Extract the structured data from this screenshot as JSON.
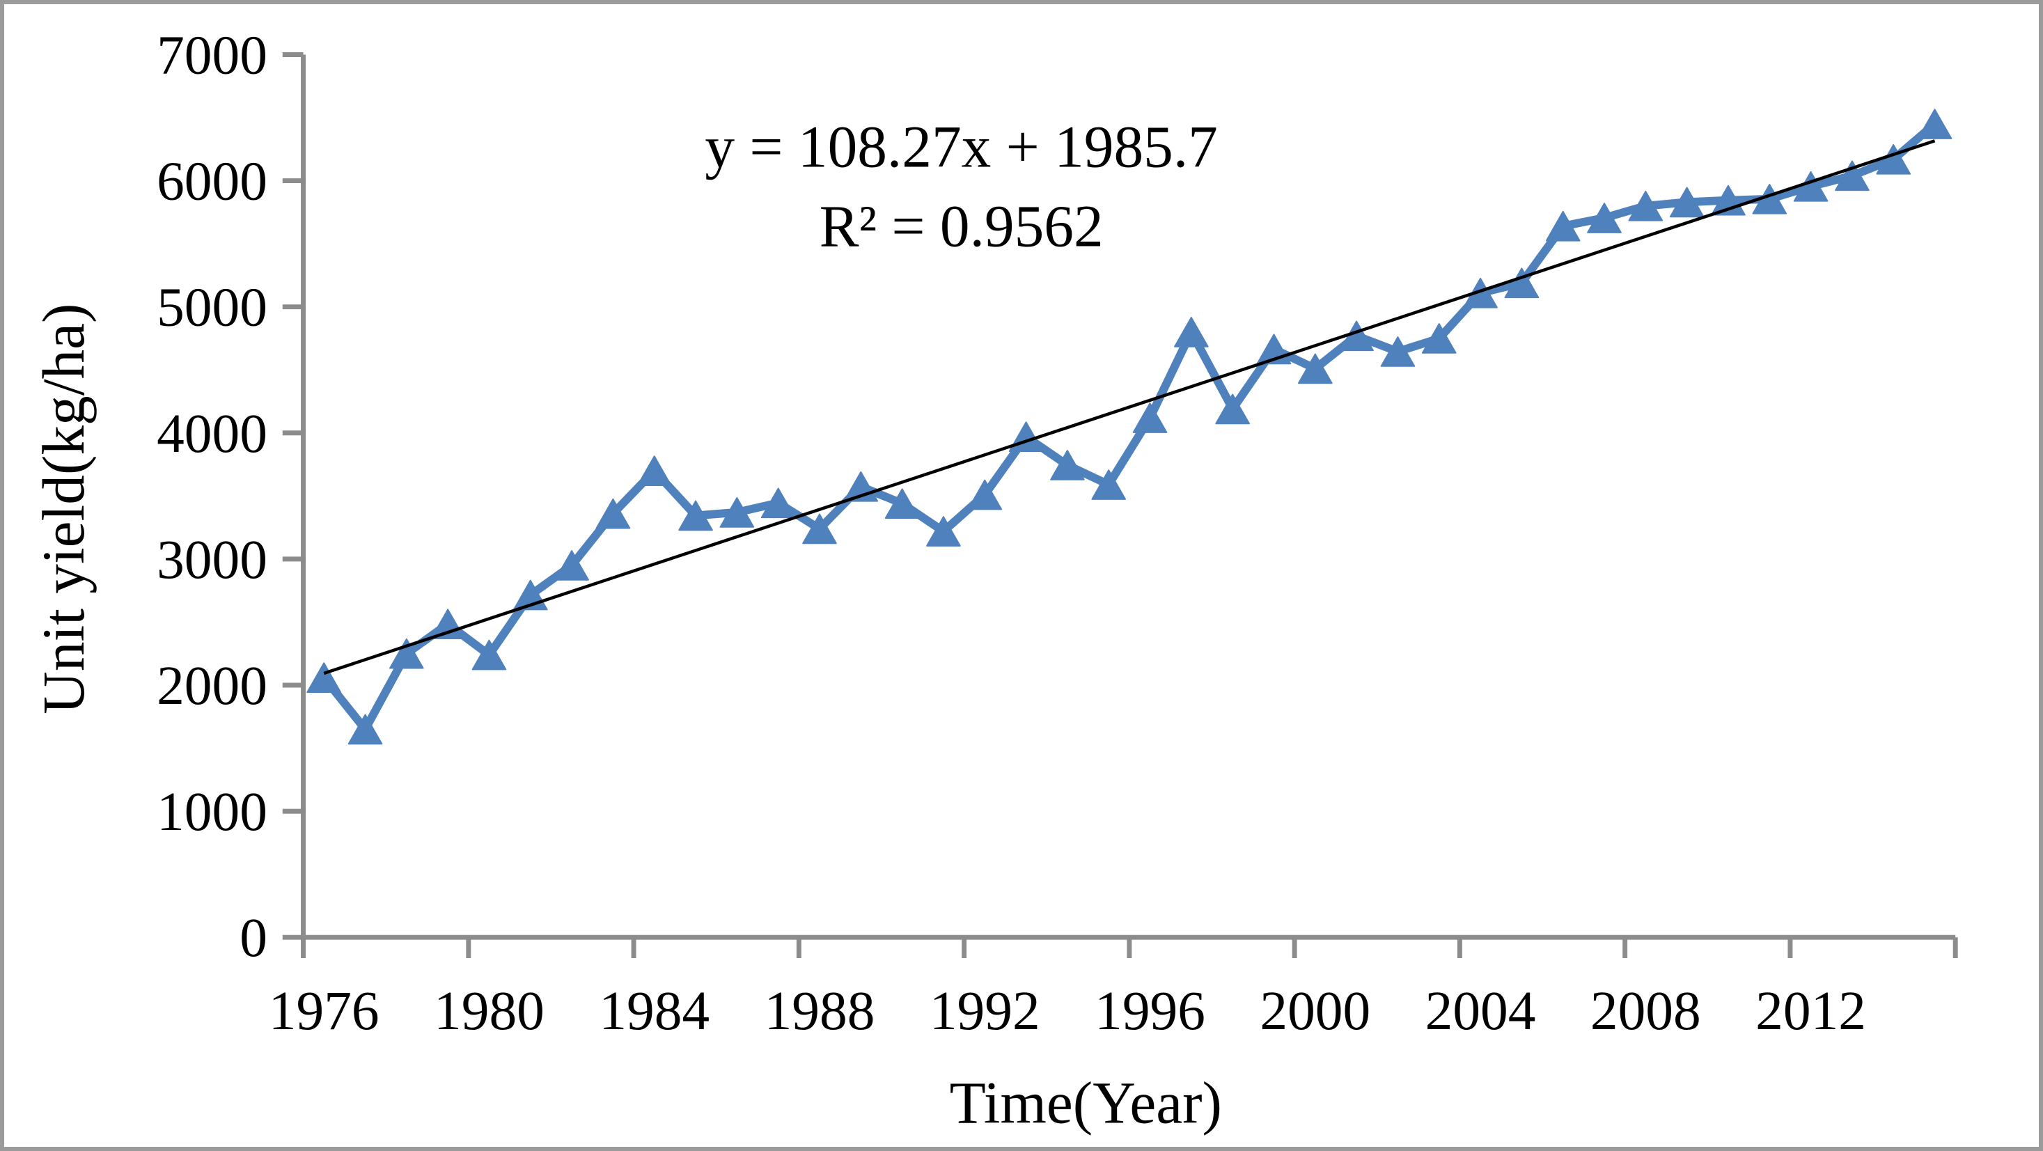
{
  "figure": {
    "background": "#ffffff",
    "border_color": "#9b9b9b"
  },
  "chart_data": {
    "type": "line",
    "title": "",
    "xlabel": "Time(Year)",
    "ylabel": "Unit yield(kg/ha)",
    "x": [
      1976,
      1977,
      1978,
      1979,
      1980,
      1981,
      1982,
      1983,
      1984,
      1985,
      1986,
      1987,
      1988,
      1989,
      1990,
      1991,
      1992,
      1993,
      1994,
      1995,
      1996,
      1997,
      1998,
      1999,
      2000,
      2001,
      2002,
      2003,
      2004,
      2005,
      2006,
      2007,
      2008,
      2009,
      2010,
      2011,
      2012,
      2013,
      2014,
      2015
    ],
    "series": [
      {
        "name": "Unit yield",
        "color": "#4F81BD",
        "marker": "triangle",
        "values": [
          2060,
          1650,
          2250,
          2485,
          2240,
          2715,
          2950,
          3360,
          3700,
          3345,
          3370,
          3445,
          3240,
          3575,
          3440,
          3220,
          3510,
          3970,
          3745,
          3590,
          4120,
          4800,
          4190,
          4665,
          4510,
          4770,
          4645,
          4750,
          5110,
          5190,
          5640,
          5705,
          5800,
          5830,
          5845,
          5855,
          5955,
          6040,
          6170,
          6450
        ]
      }
    ],
    "ylim": [
      0,
      7000
    ],
    "y_tick_step": 1000,
    "y_tick_labels": [
      "0",
      "1000",
      "2000",
      "3000",
      "4000",
      "5000",
      "6000",
      "7000"
    ],
    "x_label_years": [
      "1976",
      "1980",
      "1984",
      "1988",
      "1992",
      "1996",
      "2000",
      "2004",
      "2008",
      "2012"
    ],
    "x_label_interval": 4,
    "grid": false,
    "legend": "none",
    "axis_color": "#8c8c8c",
    "text_color": "#000000",
    "trendline": {
      "slope": 108.27,
      "intercept": 1985.7,
      "color": "#000000",
      "equation_label": "y = 108.27x + 1985.7",
      "r2_label": "R² = 0.9562"
    }
  }
}
